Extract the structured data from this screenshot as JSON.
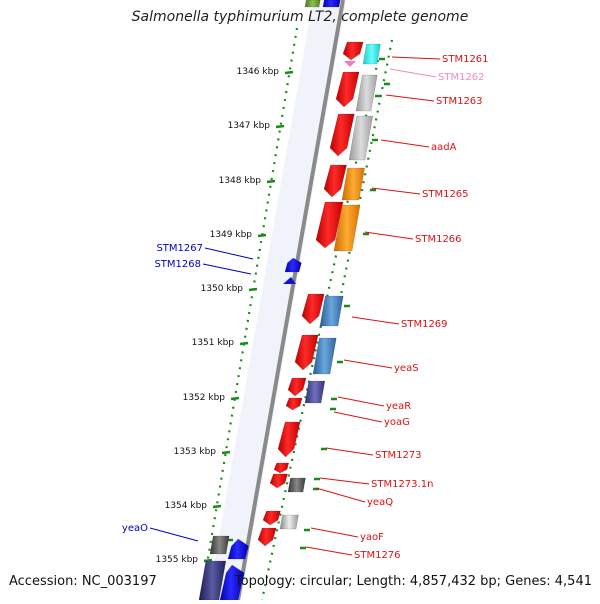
{
  "title": "Salmonella typhimurium LT2, complete genome",
  "footer": {
    "accession": "Accession: NC_003197",
    "topology": "Topology: circular; Length: 4,857,432 bp; Genes: 4,541"
  },
  "colors": {
    "backbone": "#8a8a8a",
    "tick": "#1a8a1a",
    "label_red": "#dd1111",
    "label_pink": "#f08cbc",
    "label_blue": "#0000cc"
  },
  "ticks": [
    {
      "label": "1346 kbp"
    },
    {
      "label": "1347 kbp"
    },
    {
      "label": "1348 kbp"
    },
    {
      "label": "1349 kbp"
    },
    {
      "label": "1350 kbp"
    },
    {
      "label": "1351 kbp"
    },
    {
      "label": "1352 kbp"
    },
    {
      "label": "1353 kbp"
    },
    {
      "label": "1354 kbp"
    },
    {
      "label": "1355 kbp"
    }
  ],
  "genes": [
    {
      "label": "STM1261",
      "label_color": "red",
      "strand": "+",
      "cog_color": "cyan"
    },
    {
      "label": "STM1262",
      "label_color": "pink",
      "strand": "+",
      "cog_color": "none"
    },
    {
      "label": "STM1263",
      "label_color": "red",
      "strand": "+",
      "cog_color": "gray"
    },
    {
      "label": "aadA",
      "label_color": "red",
      "strand": "+",
      "cog_color": "gray"
    },
    {
      "label": "STM1265",
      "label_color": "red",
      "strand": "+",
      "cog_color": "orange"
    },
    {
      "label": "STM1266",
      "label_color": "red",
      "strand": "+",
      "cog_color": "orange"
    },
    {
      "label": "STM1267",
      "label_color": "blue",
      "strand": "-",
      "cog_color": "none"
    },
    {
      "label": "STM1268",
      "label_color": "blue",
      "strand": "-",
      "cog_color": "none"
    },
    {
      "label": "STM1269",
      "label_color": "red",
      "strand": "+",
      "cog_color": "steelblue"
    },
    {
      "label": "yeaS",
      "label_color": "red",
      "strand": "+",
      "cog_color": "steelblue"
    },
    {
      "label": "yeaR",
      "label_color": "red",
      "strand": "+",
      "cog_color": "slateblue"
    },
    {
      "label": "yoaG",
      "label_color": "red",
      "strand": "+",
      "cog_color": "none"
    },
    {
      "label": "STM1273",
      "label_color": "red",
      "strand": "+",
      "cog_color": "none"
    },
    {
      "label": "STM1273.1n",
      "label_color": "red",
      "strand": "+",
      "cog_color": "none"
    },
    {
      "label": "yeaQ",
      "label_color": "red",
      "strand": "+",
      "cog_color": "darkgray"
    },
    {
      "label": "yaoF",
      "label_color": "red",
      "strand": "+",
      "cog_color": "lightgray"
    },
    {
      "label": "STM1276",
      "label_color": "red",
      "strand": "+",
      "cog_color": "none"
    },
    {
      "label": "yeaO",
      "label_color": "blue",
      "strand": "-",
      "cog_color": "darkgray"
    }
  ]
}
